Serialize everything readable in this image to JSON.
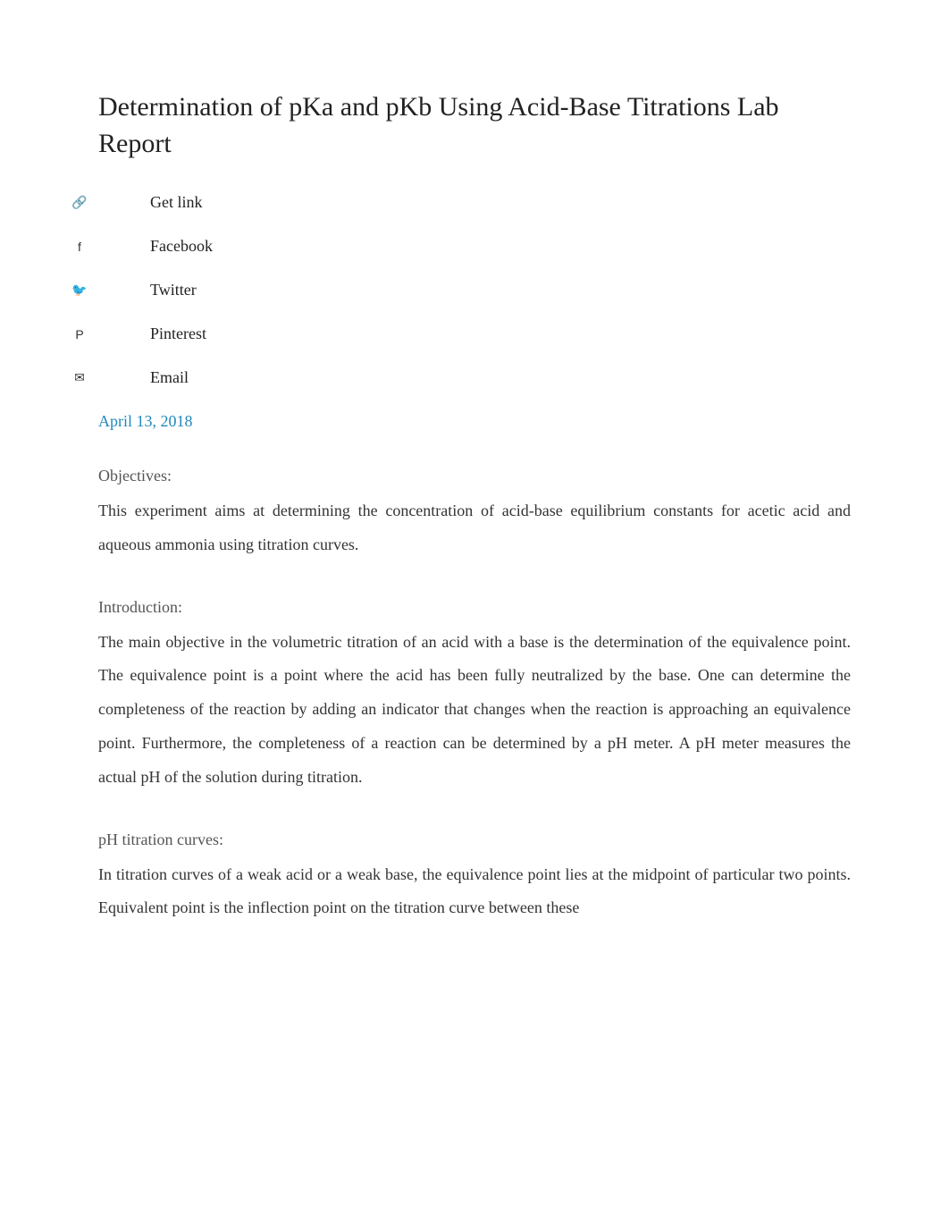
{
  "title": "Determination of pKa and pKb Using Acid-Base Titrations Lab Report",
  "share": {
    "items": [
      {
        "icon": "🔗",
        "label": "Get link"
      },
      {
        "icon": "f",
        "label": "Facebook"
      },
      {
        "icon": "🐦",
        "label": "Twitter"
      },
      {
        "icon": "P",
        "label": "Pinterest"
      },
      {
        "icon": "✉",
        "label": "Email"
      }
    ]
  },
  "date": "April 13, 2018",
  "sections": {
    "objectives": {
      "heading": "Objectives:",
      "text": "This experiment aims at determining the concentration of acid-base equilibrium constants for acetic acid and aqueous ammonia using titration curves."
    },
    "introduction": {
      "heading": "Introduction:",
      "text": "The main objective in the volumetric titration of an acid with a base is the determination of the equivalence point. The equivalence point is a point where the acid has been fully neutralized by the base. One can determine the completeness of the reaction by adding an indicator that changes when the reaction is approaching an equivalence point. Furthermore, the completeness of a reaction can be determined by a pH meter. A pH meter measures the actual pH of the solution during titration."
    },
    "phCurves": {
      "heading": "pH titration curves:",
      "text": "In titration curves of a weak acid or a weak base, the equivalence point lies at the midpoint of particular two points. Equivalent point is the inflection point on the titration curve between these"
    }
  },
  "colors": {
    "title": "#222222",
    "link": "#2288bb",
    "heading": "#555555",
    "body": "#333333",
    "background": "#ffffff"
  },
  "typography": {
    "title_fontsize": 30,
    "body_fontsize": 18,
    "line_height": 2.1,
    "font_family": "Georgia, Times New Roman, serif"
  }
}
